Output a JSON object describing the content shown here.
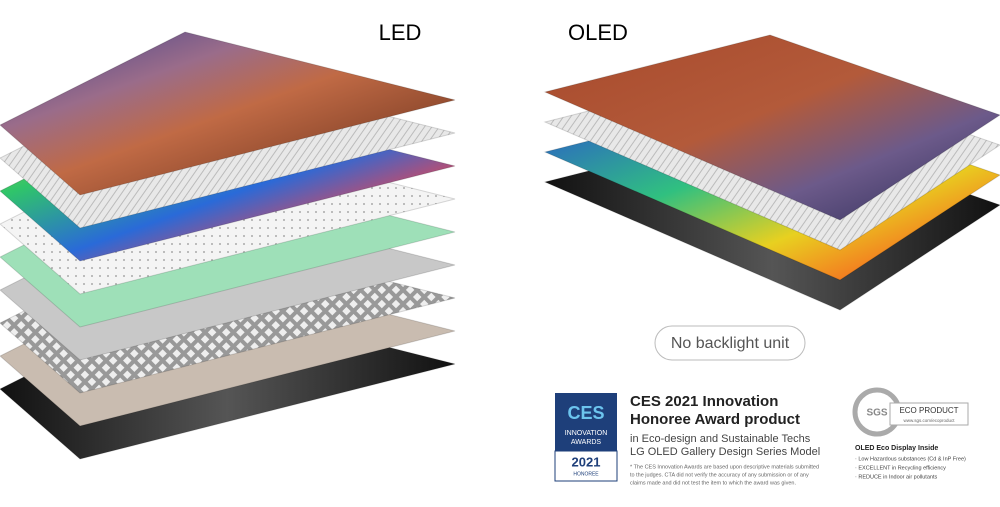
{
  "headings": {
    "led": "LED",
    "oled": "OLED"
  },
  "callout": "No backlight unit",
  "ces_badge": {
    "logo": "CES",
    "line1": "INNOVATION",
    "line2": "AWARDS",
    "year": "2021",
    "status": "HONOREE"
  },
  "ces_text": {
    "title1": "CES 2021 Innovation",
    "title2": "Honoree Award product",
    "sub1": "in Eco-design and Sustainable Techs",
    "sub2": "LG OLED Gallery Design Series Model",
    "note": [
      "* The CES Innovation Awards are based upon descriptive materials submitted",
      "to the judges. CTA did not verify the accuracy of any submission or of any",
      "claims made and did not test the item to which the award was given."
    ]
  },
  "sgs": {
    "logo": "SGS",
    "label": "ECO PRODUCT",
    "url": "www.sgs.com/ecoproduct",
    "title": "OLED Eco Display Inside",
    "items": [
      "· Low Hazardous substances (Cd & InP Free)",
      "· EXCELLENT in Recycling efficiency",
      "· REDUCE in Indoor air pollutants"
    ]
  }
}
